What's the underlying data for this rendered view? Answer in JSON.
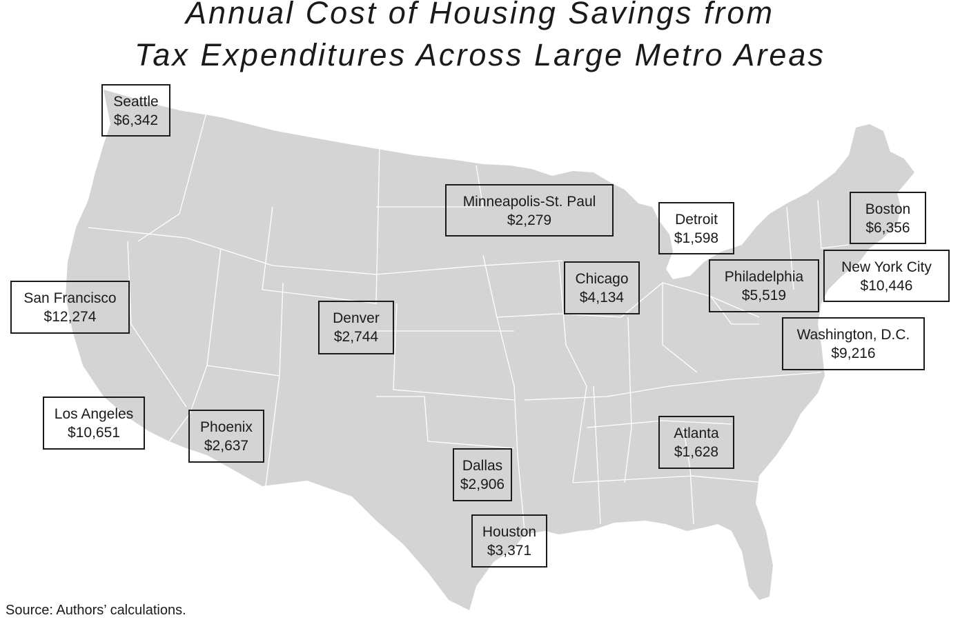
{
  "title": {
    "line1": "Annual Cost of Housing Savings from",
    "line2": "Tax Expenditures Across Large Metro Areas"
  },
  "colors": {
    "land": "#d4d4d4",
    "borders": "#ffffff",
    "box_border": "#1a1a1a"
  },
  "metros": [
    {
      "id": "seattle",
      "name": "Seattle",
      "value": "$6,342"
    },
    {
      "id": "minneapolis",
      "name": "Minneapolis-St. Paul",
      "value": "$2,279"
    },
    {
      "id": "detroit",
      "name": "Detroit",
      "value": "$1,598"
    },
    {
      "id": "boston",
      "name": "Boston",
      "value": "$6,356"
    },
    {
      "id": "new-york",
      "name": "New York City",
      "value": "$10,446"
    },
    {
      "id": "chicago",
      "name": "Chicago",
      "value": "$4,134"
    },
    {
      "id": "philadelphia",
      "name": "Philadelphia",
      "value": "$5,519"
    },
    {
      "id": "san-francisco",
      "name": "San Francisco",
      "value": "$12,274"
    },
    {
      "id": "denver",
      "name": "Denver",
      "value": "$2,744"
    },
    {
      "id": "washington",
      "name": "Washington, D.C.",
      "value": "$9,216"
    },
    {
      "id": "los-angeles",
      "name": "Los Angeles",
      "value": "$10,651"
    },
    {
      "id": "phoenix",
      "name": "Phoenix",
      "value": "$2,637"
    },
    {
      "id": "atlanta",
      "name": "Atlanta",
      "value": "$1,628"
    },
    {
      "id": "dallas",
      "name": "Dallas",
      "value": "$2,906"
    },
    {
      "id": "houston",
      "name": "Houston",
      "value": "$3,371"
    }
  ],
  "source": "Source: Authors’ calculations."
}
